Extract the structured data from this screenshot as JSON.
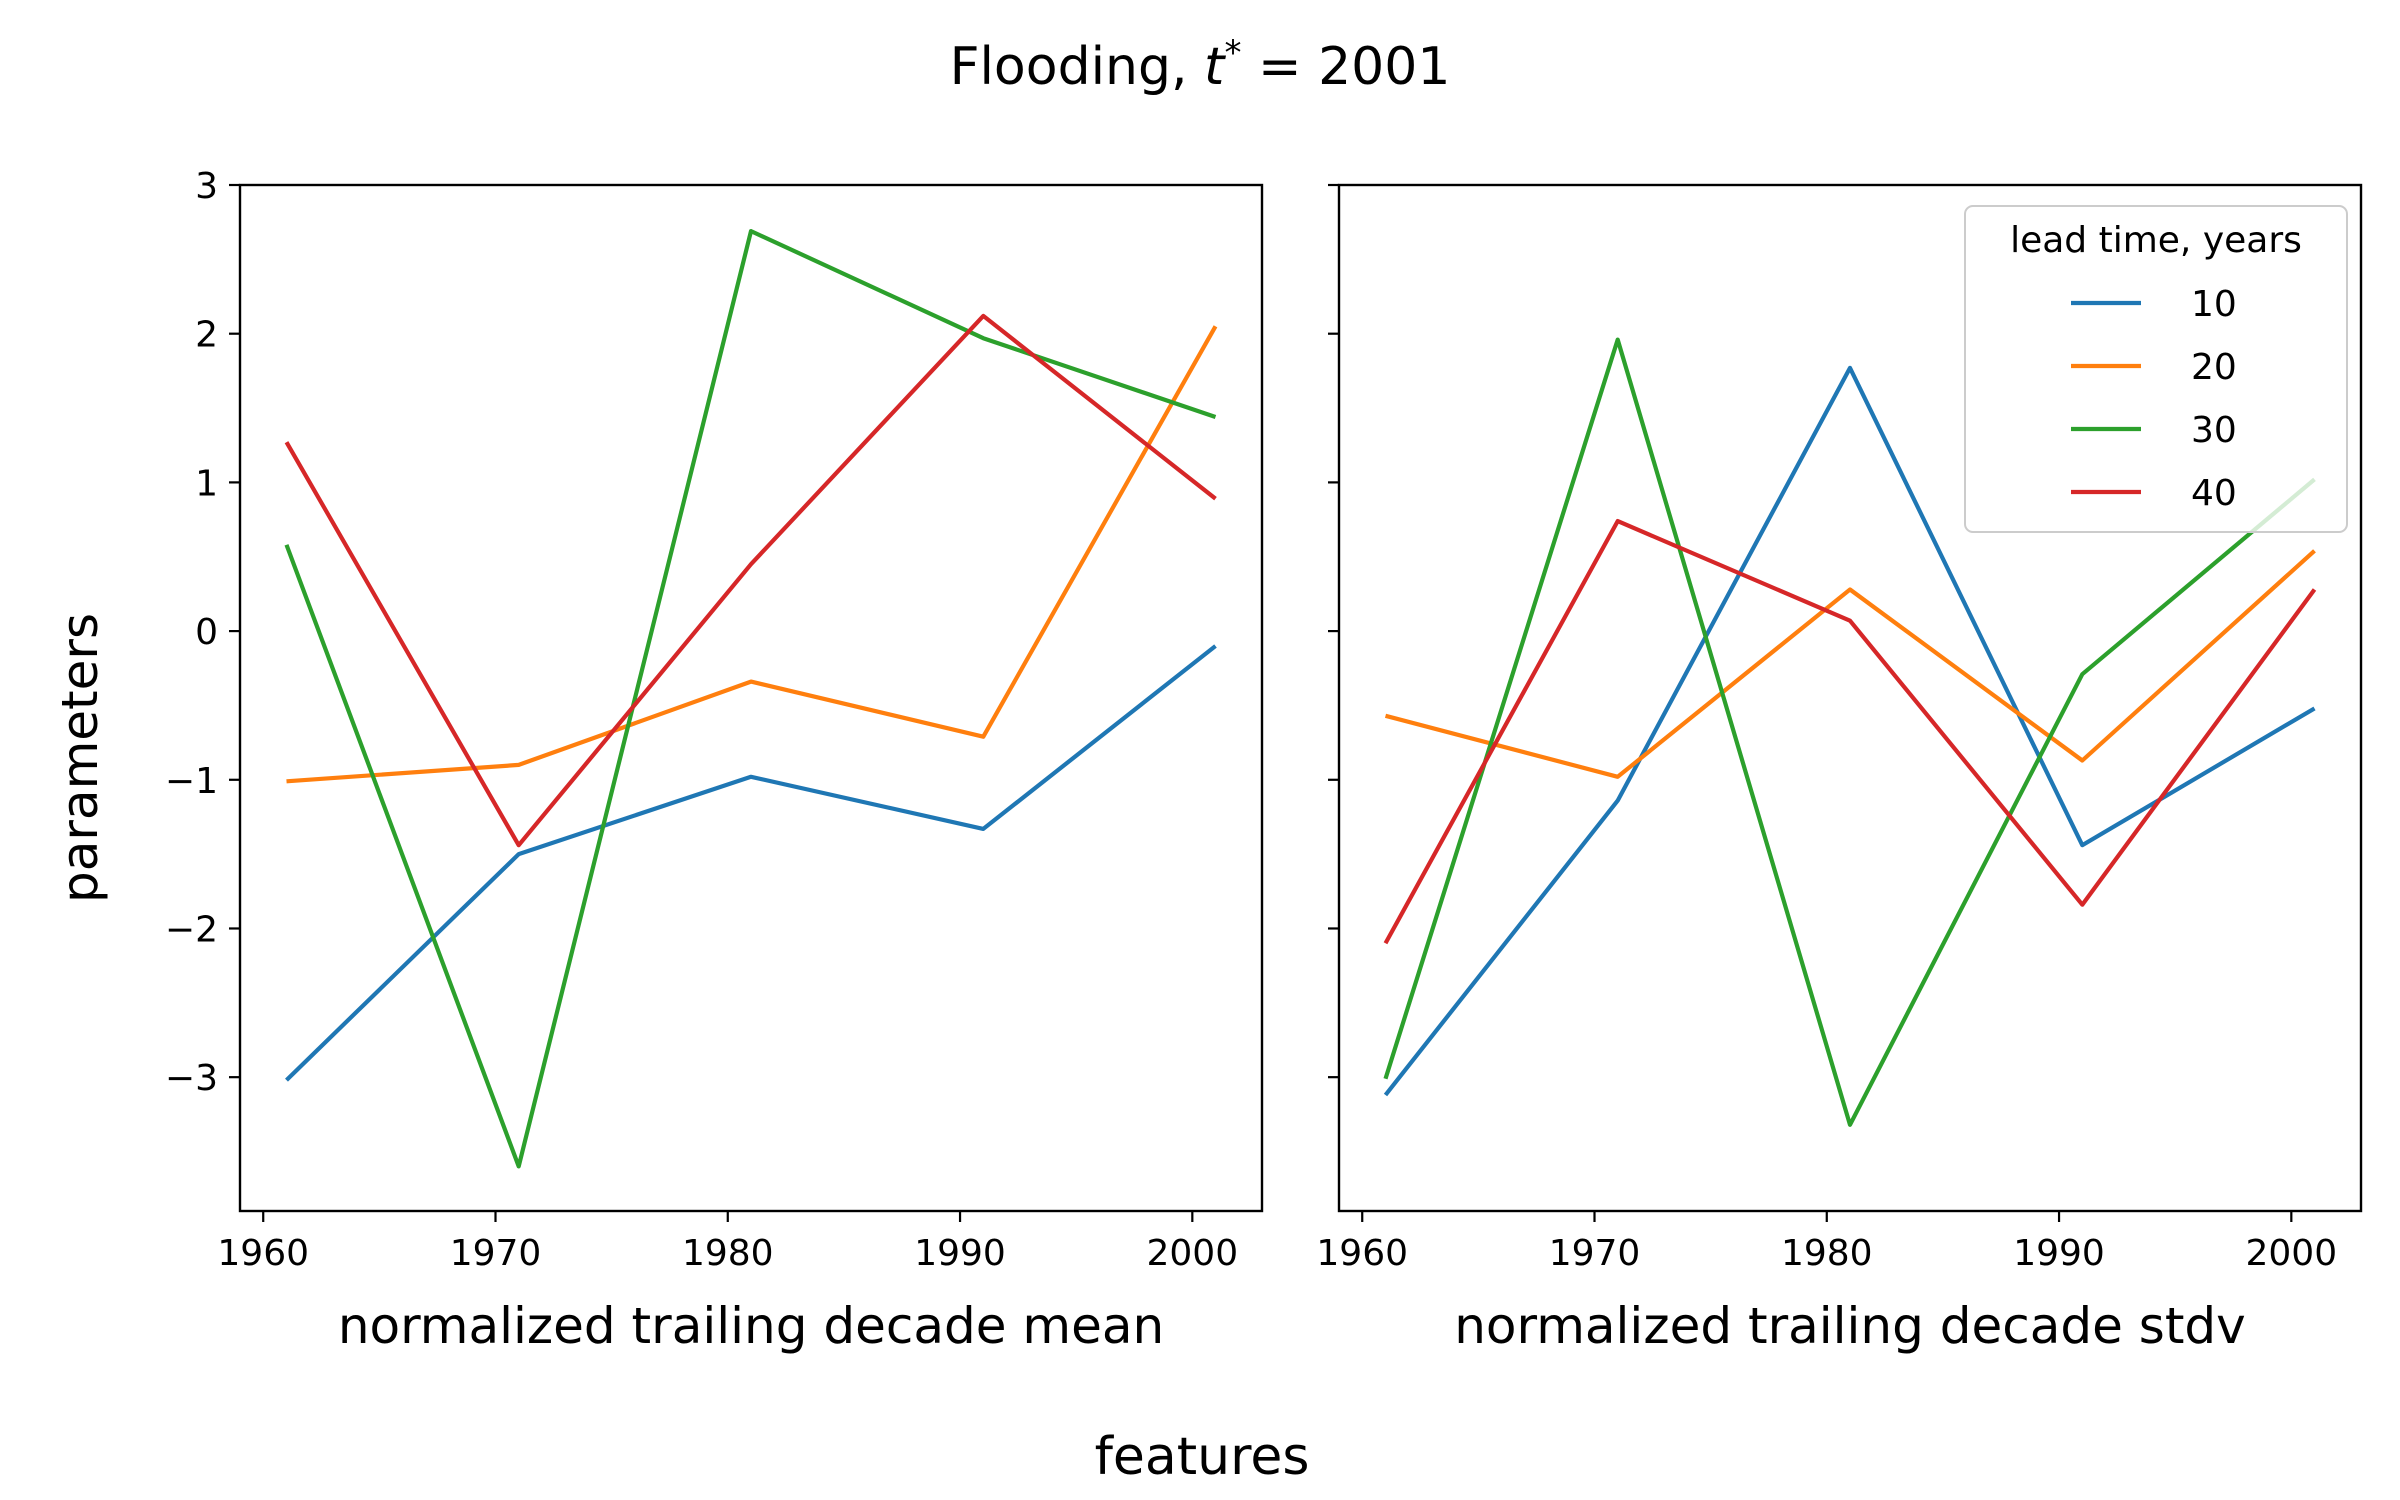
{
  "figure": {
    "title_prefix": "Flooding, ",
    "title_var": "t",
    "title_sup": "*",
    "title_suffix": " = 2001",
    "ylabel": "parameters",
    "supxlabel": "features"
  },
  "legend": {
    "title": "lead time, years",
    "placement": "top-right of right panel"
  },
  "chart_data": [
    {
      "type": "line",
      "xlabel": "normalized trailing decade mean",
      "ylabel": "parameters",
      "x": [
        1961,
        1971,
        1981,
        1991,
        2001
      ],
      "xlim": [
        1959,
        2003
      ],
      "ylim": [
        -3.9,
        3.0
      ],
      "xticks": [
        1960,
        1970,
        1980,
        1990,
        2000
      ],
      "xtick_labels": [
        "1960",
        "1970",
        "1980",
        "1990",
        "2000"
      ],
      "yticks": [
        3,
        2,
        1,
        0,
        -1,
        -2,
        -3
      ],
      "ytick_labels": [
        "3",
        "2",
        "1",
        "0",
        "−1",
        "−2",
        "−3"
      ],
      "grid": false,
      "series": [
        {
          "name": "10",
          "color": "#1f77b4",
          "values": [
            -3.02,
            -1.5,
            -0.98,
            -1.33,
            -0.1
          ]
        },
        {
          "name": "20",
          "color": "#ff7f0e",
          "values": [
            -1.01,
            -0.9,
            -0.34,
            -0.71,
            2.05
          ]
        },
        {
          "name": "30",
          "color": "#2ca02c",
          "values": [
            0.58,
            -3.6,
            2.69,
            1.97,
            1.44
          ]
        },
        {
          "name": "40",
          "color": "#d62728",
          "values": [
            1.27,
            -1.44,
            0.45,
            2.12,
            0.89
          ]
        }
      ]
    },
    {
      "type": "line",
      "xlabel": "normalized trailing decade stdv",
      "x": [
        1961,
        1971,
        1981,
        1991,
        2001
      ],
      "xlim": [
        1959,
        2003
      ],
      "ylim": [
        -3.9,
        3.0
      ],
      "xticks": [
        1960,
        1970,
        1980,
        1990,
        2000
      ],
      "xtick_labels": [
        "1960",
        "1970",
        "1980",
        "1990",
        "2000"
      ],
      "yticks": [
        3,
        2,
        1,
        0,
        -1,
        -2,
        -3
      ],
      "grid": false,
      "series": [
        {
          "name": "10",
          "color": "#1f77b4",
          "values": [
            -3.12,
            -1.14,
            1.77,
            -1.44,
            -0.52
          ]
        },
        {
          "name": "20",
          "color": "#ff7f0e",
          "values": [
            -0.57,
            -0.98,
            0.28,
            -0.87,
            0.54
          ]
        },
        {
          "name": "30",
          "color": "#2ca02c",
          "values": [
            -3.01,
            1.96,
            -3.32,
            -0.29,
            1.02
          ]
        },
        {
          "name": "40",
          "color": "#d62728",
          "values": [
            -2.1,
            0.74,
            0.07,
            -1.84,
            0.28
          ]
        }
      ]
    }
  ]
}
